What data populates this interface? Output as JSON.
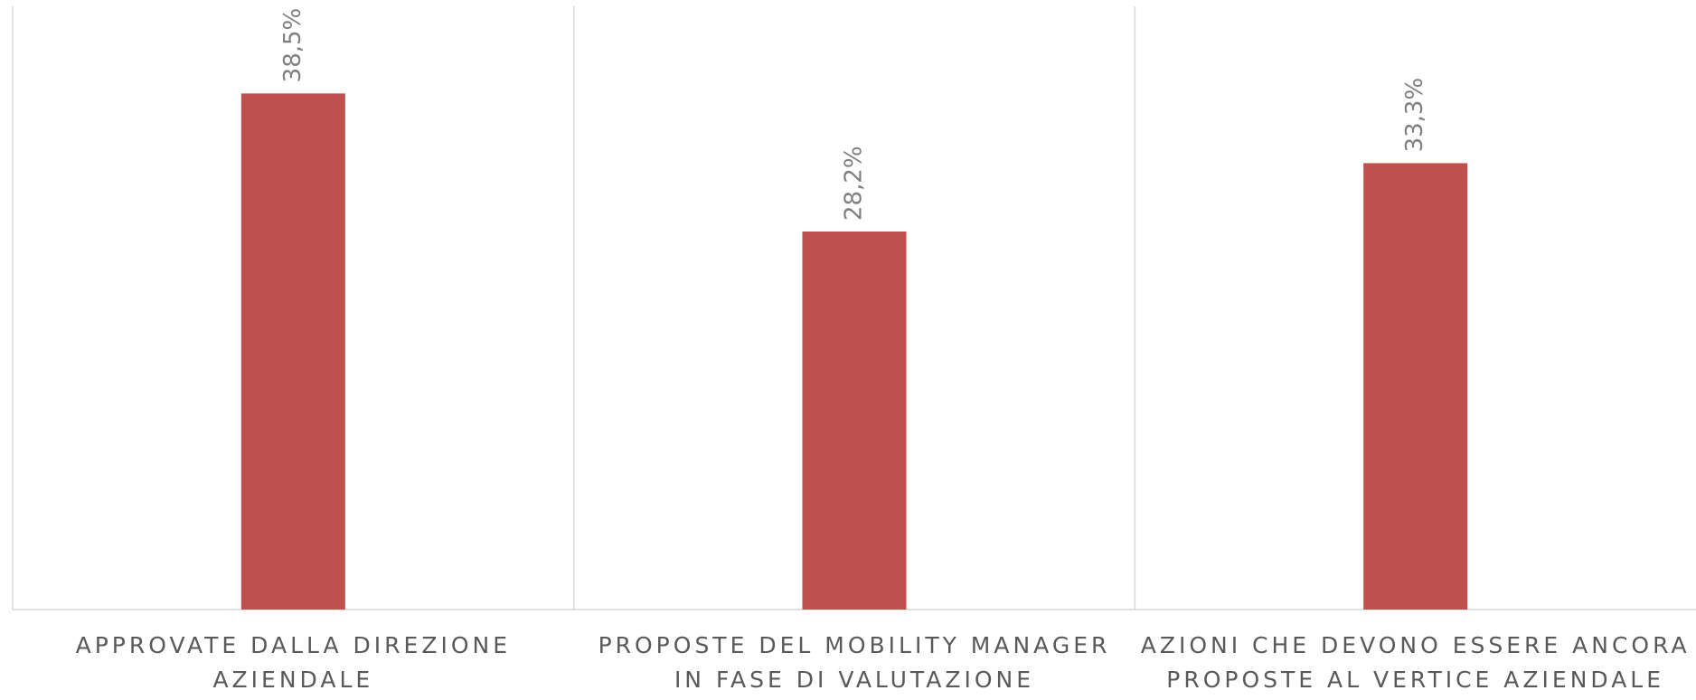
{
  "chart_data": {
    "type": "bar",
    "categories": [
      "APPROVATE DALLA DIREZIONE AZIENDALE",
      "PROPOSTE DEL MOBILITY MANAGER IN FASE DI VALUTAZIONE",
      "AZIONI CHE DEVONO ESSERE ANCORA PROPOSTE AL VERTICE AZIENDALE"
    ],
    "values": [
      38.5,
      28.2,
      33.3
    ],
    "value_labels": [
      "38,5%",
      "28,2%",
      "33,3%"
    ],
    "color": "#c0504d",
    "ylim": [
      0,
      45
    ]
  }
}
